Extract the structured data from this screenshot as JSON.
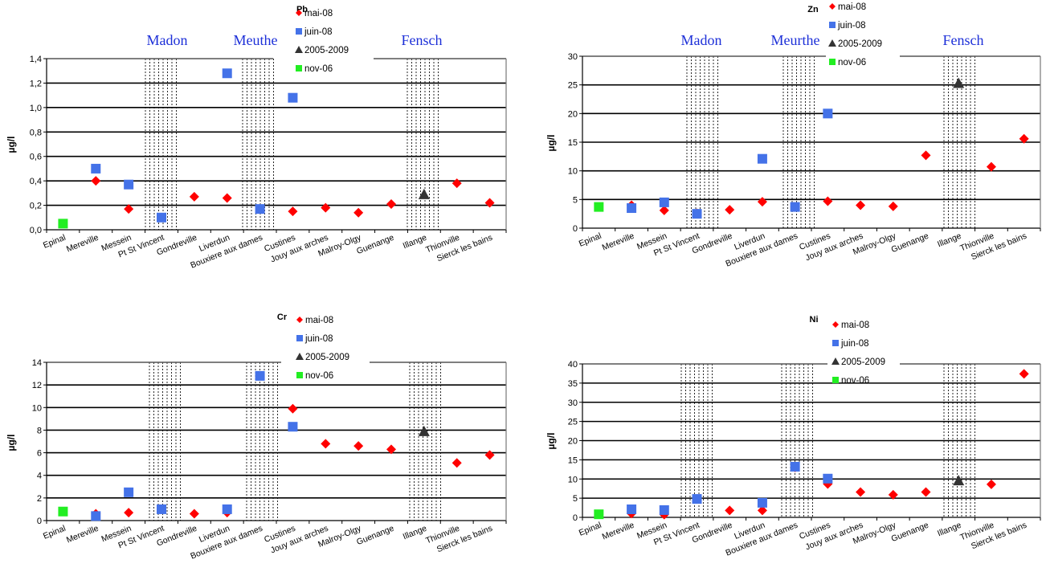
{
  "colors": {
    "mai-08": "#ff0000",
    "juin-08": "#4472e8",
    "2005-2009": "#333333",
    "nov-06": "#22ee22",
    "river_label": "#1c2fd8"
  },
  "chart_data": [
    {
      "type": "scatter",
      "title": "Pb",
      "ylabel": "µg/l",
      "ylim": [
        0,
        1.4
      ],
      "yticks": [
        "0,0",
        "0,2",
        "0,4",
        "0,6",
        "0,8",
        "1,0",
        "1,2",
        "1,4"
      ],
      "categories": [
        "Epinal",
        "Mereville",
        "Messein",
        "Pt St Vincent",
        "Gondreville",
        "Liverdun",
        "Bouxiere aux dames",
        "Custines",
        "Jouy aux arches",
        "Malroy-Olgy",
        "Guenange",
        "Illange",
        "Thionville",
        "Sierck les bains"
      ],
      "river_labels": [
        "Madon",
        "Meuthe",
        "Fensch"
      ],
      "legend_position": "top",
      "grid": true,
      "series": [
        {
          "name": "mai-08",
          "marker": "diamond",
          "values": [
            null,
            0.4,
            0.17,
            null,
            0.27,
            0.26,
            null,
            0.15,
            0.18,
            0.14,
            0.21,
            null,
            0.38,
            0.22
          ]
        },
        {
          "name": "juin-08",
          "marker": "square",
          "values": [
            null,
            0.5,
            0.37,
            0.1,
            null,
            1.28,
            0.17,
            1.08,
            null,
            null,
            null,
            null,
            null,
            null
          ]
        },
        {
          "name": "2005-2009",
          "marker": "triangle",
          "values": [
            null,
            null,
            null,
            null,
            null,
            null,
            null,
            null,
            null,
            null,
            null,
            0.29,
            null,
            null
          ]
        },
        {
          "name": "nov-06",
          "marker": "square",
          "values": [
            0.05,
            null,
            null,
            null,
            null,
            null,
            null,
            null,
            null,
            null,
            null,
            null,
            null,
            null
          ]
        }
      ]
    },
    {
      "type": "scatter",
      "title": "Zn",
      "ylabel": "µg/l",
      "ylim": [
        0,
        30
      ],
      "yticks": [
        "0",
        "5",
        "10",
        "15",
        "20",
        "25",
        "30"
      ],
      "categories": [
        "Epinal",
        "Mereville",
        "Messein",
        "Pt St Vincent",
        "Gondreville",
        "Liverdun",
        "Bouxiere aux dames",
        "Custines",
        "Jouy aux arches",
        "Malroy-Olgy",
        "Guenange",
        "Illange",
        "Thionville",
        "Sierck les bains"
      ],
      "river_labels": [
        "Madon",
        "Meurthe",
        "Fensch"
      ],
      "legend_position": "top",
      "grid": true,
      "series": [
        {
          "name": "mai-08",
          "marker": "diamond",
          "values": [
            null,
            4.0,
            3.1,
            2.6,
            3.2,
            4.6,
            3.7,
            4.7,
            4.0,
            3.8,
            12.7,
            null,
            10.7,
            15.6
          ]
        },
        {
          "name": "juin-08",
          "marker": "square",
          "values": [
            null,
            3.5,
            4.5,
            2.5,
            null,
            12.1,
            3.7,
            20.0,
            null,
            null,
            null,
            null,
            null,
            null
          ]
        },
        {
          "name": "2005-2009",
          "marker": "triangle",
          "values": [
            null,
            null,
            null,
            null,
            null,
            null,
            null,
            null,
            null,
            null,
            null,
            25.3,
            null,
            null
          ]
        },
        {
          "name": "nov-06",
          "marker": "square",
          "values": [
            3.7,
            null,
            null,
            null,
            null,
            null,
            null,
            null,
            null,
            null,
            null,
            null,
            null,
            null
          ]
        }
      ]
    },
    {
      "type": "scatter",
      "title": "Cr",
      "ylabel": "µg/l",
      "ylim": [
        0,
        14
      ],
      "yticks": [
        "0",
        "2",
        "4",
        "6",
        "8",
        "10",
        "12",
        "14"
      ],
      "categories": [
        "Epinal",
        "Mereville",
        "Messein",
        "Pt St Vincent",
        "Gondreville",
        "Liverdun",
        "Bouxiere aux dames",
        "Custines",
        "Jouy aux arches",
        "Malroy-Olgy",
        "Guenange",
        "Illange",
        "Thionville",
        "Sierck les bains"
      ],
      "river_labels": [],
      "legend_position": "top",
      "grid": true,
      "series": [
        {
          "name": "mai-08",
          "marker": "diamond",
          "values": [
            null,
            0.6,
            0.7,
            1.0,
            0.6,
            0.7,
            12.8,
            9.9,
            6.8,
            6.6,
            6.3,
            null,
            5.1,
            5.8
          ]
        },
        {
          "name": "juin-08",
          "marker": "square",
          "values": [
            null,
            0.4,
            2.5,
            1.0,
            null,
            1.0,
            12.8,
            8.3,
            null,
            null,
            null,
            null,
            null,
            null
          ]
        },
        {
          "name": "2005-2009",
          "marker": "triangle",
          "values": [
            null,
            null,
            null,
            null,
            null,
            null,
            null,
            null,
            null,
            null,
            null,
            7.9,
            null,
            null
          ]
        },
        {
          "name": "nov-06",
          "marker": "square",
          "values": [
            0.8,
            null,
            null,
            null,
            null,
            null,
            null,
            null,
            null,
            null,
            null,
            null,
            null,
            null
          ]
        }
      ]
    },
    {
      "type": "scatter",
      "title": "Ni",
      "ylabel": "µg/l",
      "ylim": [
        0,
        40
      ],
      "yticks": [
        "0",
        "5",
        "10",
        "15",
        "20",
        "25",
        "30",
        "35",
        "40"
      ],
      "categories": [
        "Epinal",
        "Mereville",
        "Messein",
        "Pt St Vincent",
        "Gondreville",
        "Liverdun",
        "Bouxiere aux dames",
        "Custines",
        "Jouy aux arches",
        "Malroy-Olgy",
        "Guenange",
        "Illange",
        "Thionville",
        "Sierck les bains"
      ],
      "river_labels": [],
      "legend_position": "top",
      "grid": true,
      "series": [
        {
          "name": "mai-08",
          "marker": "diamond",
          "values": [
            null,
            1.0,
            0.7,
            4.8,
            1.8,
            1.8,
            13.0,
            8.7,
            6.6,
            5.9,
            6.6,
            null,
            8.6,
            37.4
          ]
        },
        {
          "name": "juin-08",
          "marker": "square",
          "values": [
            null,
            2.1,
            1.9,
            4.8,
            null,
            3.8,
            13.2,
            10.1,
            null,
            null,
            null,
            null,
            null,
            null
          ]
        },
        {
          "name": "2005-2009",
          "marker": "triangle",
          "values": [
            null,
            null,
            null,
            null,
            null,
            null,
            null,
            null,
            null,
            null,
            null,
            9.6,
            null,
            null
          ]
        },
        {
          "name": "nov-06",
          "marker": "square",
          "values": [
            0.8,
            null,
            null,
            null,
            null,
            null,
            null,
            null,
            null,
            null,
            null,
            null,
            null,
            null
          ]
        }
      ]
    }
  ]
}
